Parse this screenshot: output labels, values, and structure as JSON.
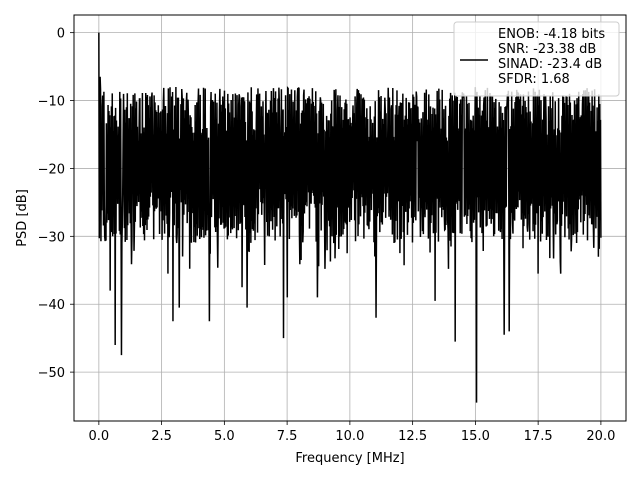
{
  "chart_data": {
    "type": "line",
    "title": "",
    "xlabel": "Frequency [MHz]",
    "ylabel": "PSD [dB]",
    "xlim": [
      -0.99,
      21.0
    ],
    "ylim": [
      -57.2,
      2.6
    ],
    "grid": true,
    "legend_placement": "top-right",
    "x_ticks": [
      0.0,
      2.5,
      5.0,
      7.5,
      10.0,
      12.5,
      15.0,
      17.5,
      20.0
    ],
    "x_tick_labels": [
      "0.0",
      "2.5",
      "5.0",
      "7.5",
      "10.0",
      "12.5",
      "15.0",
      "17.5",
      "20.0"
    ],
    "y_ticks": [
      0,
      -10,
      -20,
      -30,
      -40,
      -50
    ],
    "y_tick_labels": [
      "0",
      "−10",
      "−20",
      "−30",
      "−40",
      "−50"
    ],
    "series": [
      {
        "name": "ENOB: -4.18 bits\nSNR: -23.38 dB\nSINAD: -23.4 dB\nSFDR: 1.68",
        "color": "#000000",
        "x_range": [
          0.0,
          20.0
        ],
        "n_points": 1200,
        "approx_band_top": -12,
        "approx_band_bottom": -27,
        "peaks": [
          {
            "x": 0.0,
            "y": 0.0
          },
          {
            "x": 0.05,
            "y": -6.5
          }
        ],
        "dips": [
          {
            "x": 0.45,
            "y": -38
          },
          {
            "x": 0.65,
            "y": -46
          },
          {
            "x": 0.9,
            "y": -47.5
          },
          {
            "x": 2.75,
            "y": -35.5
          },
          {
            "x": 2.95,
            "y": -42.5
          },
          {
            "x": 3.2,
            "y": -40.5
          },
          {
            "x": 4.4,
            "y": -42.5
          },
          {
            "x": 5.7,
            "y": -37.5
          },
          {
            "x": 5.9,
            "y": -40.5
          },
          {
            "x": 7.35,
            "y": -45.0
          },
          {
            "x": 7.5,
            "y": -39.0
          },
          {
            "x": 8.7,
            "y": -39.0
          },
          {
            "x": 11.05,
            "y": -42.0
          },
          {
            "x": 13.4,
            "y": -39.5
          },
          {
            "x": 14.2,
            "y": -45.5
          },
          {
            "x": 15.05,
            "y": -54.5
          },
          {
            "x": 16.15,
            "y": -44.5
          },
          {
            "x": 16.35,
            "y": -44.0
          },
          {
            "x": 17.5,
            "y": -35.5
          },
          {
            "x": 18.4,
            "y": -35.5
          },
          {
            "x": 19.9,
            "y": -33.0
          }
        ]
      }
    ]
  }
}
